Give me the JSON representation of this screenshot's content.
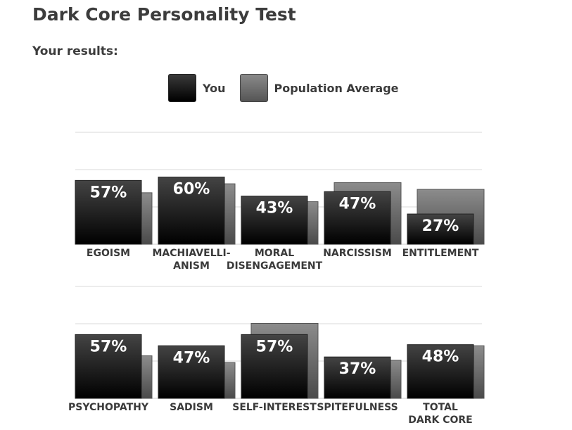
{
  "title": "Dark Core Personality Test",
  "subtitle": "Your results:",
  "legend": {
    "you": "You",
    "population": "Population Average"
  },
  "colors": {
    "you": "#1a1a1a",
    "population": "#6a6a6a"
  },
  "chart_data": [
    {
      "type": "bar",
      "ylim": [
        0,
        100
      ],
      "grid": true,
      "categories": [
        [
          "EGOISM"
        ],
        [
          "MACHIAVELLI-",
          "ANISM"
        ],
        [
          "MORAL",
          "DISENGAGEMENT"
        ],
        [
          "NARCISSISM"
        ],
        [
          "ENTITLEMENT"
        ]
      ],
      "series": [
        {
          "name": "You",
          "values": [
            57,
            60,
            43,
            47,
            27
          ]
        },
        {
          "name": "Population Average",
          "values": [
            46,
            54,
            38,
            55,
            49
          ]
        }
      ],
      "labels": [
        "57%",
        "60%",
        "43%",
        "47%",
        "27%"
      ]
    },
    {
      "type": "bar",
      "ylim": [
        0,
        100
      ],
      "grid": true,
      "categories": [
        [
          "PSYCHOPATHY"
        ],
        [
          "SADISM"
        ],
        [
          "SELF-INTEREST"
        ],
        [
          "SPITEFULNESS"
        ],
        [
          "TOTAL",
          "DARK CORE"
        ]
      ],
      "series": [
        {
          "name": "You",
          "values": [
            57,
            47,
            57,
            37,
            48
          ]
        },
        {
          "name": "Population Average",
          "values": [
            38,
            32,
            67,
            34,
            47
          ]
        }
      ],
      "labels": [
        "57%",
        "47%",
        "57%",
        "37%",
        "48%"
      ]
    }
  ]
}
